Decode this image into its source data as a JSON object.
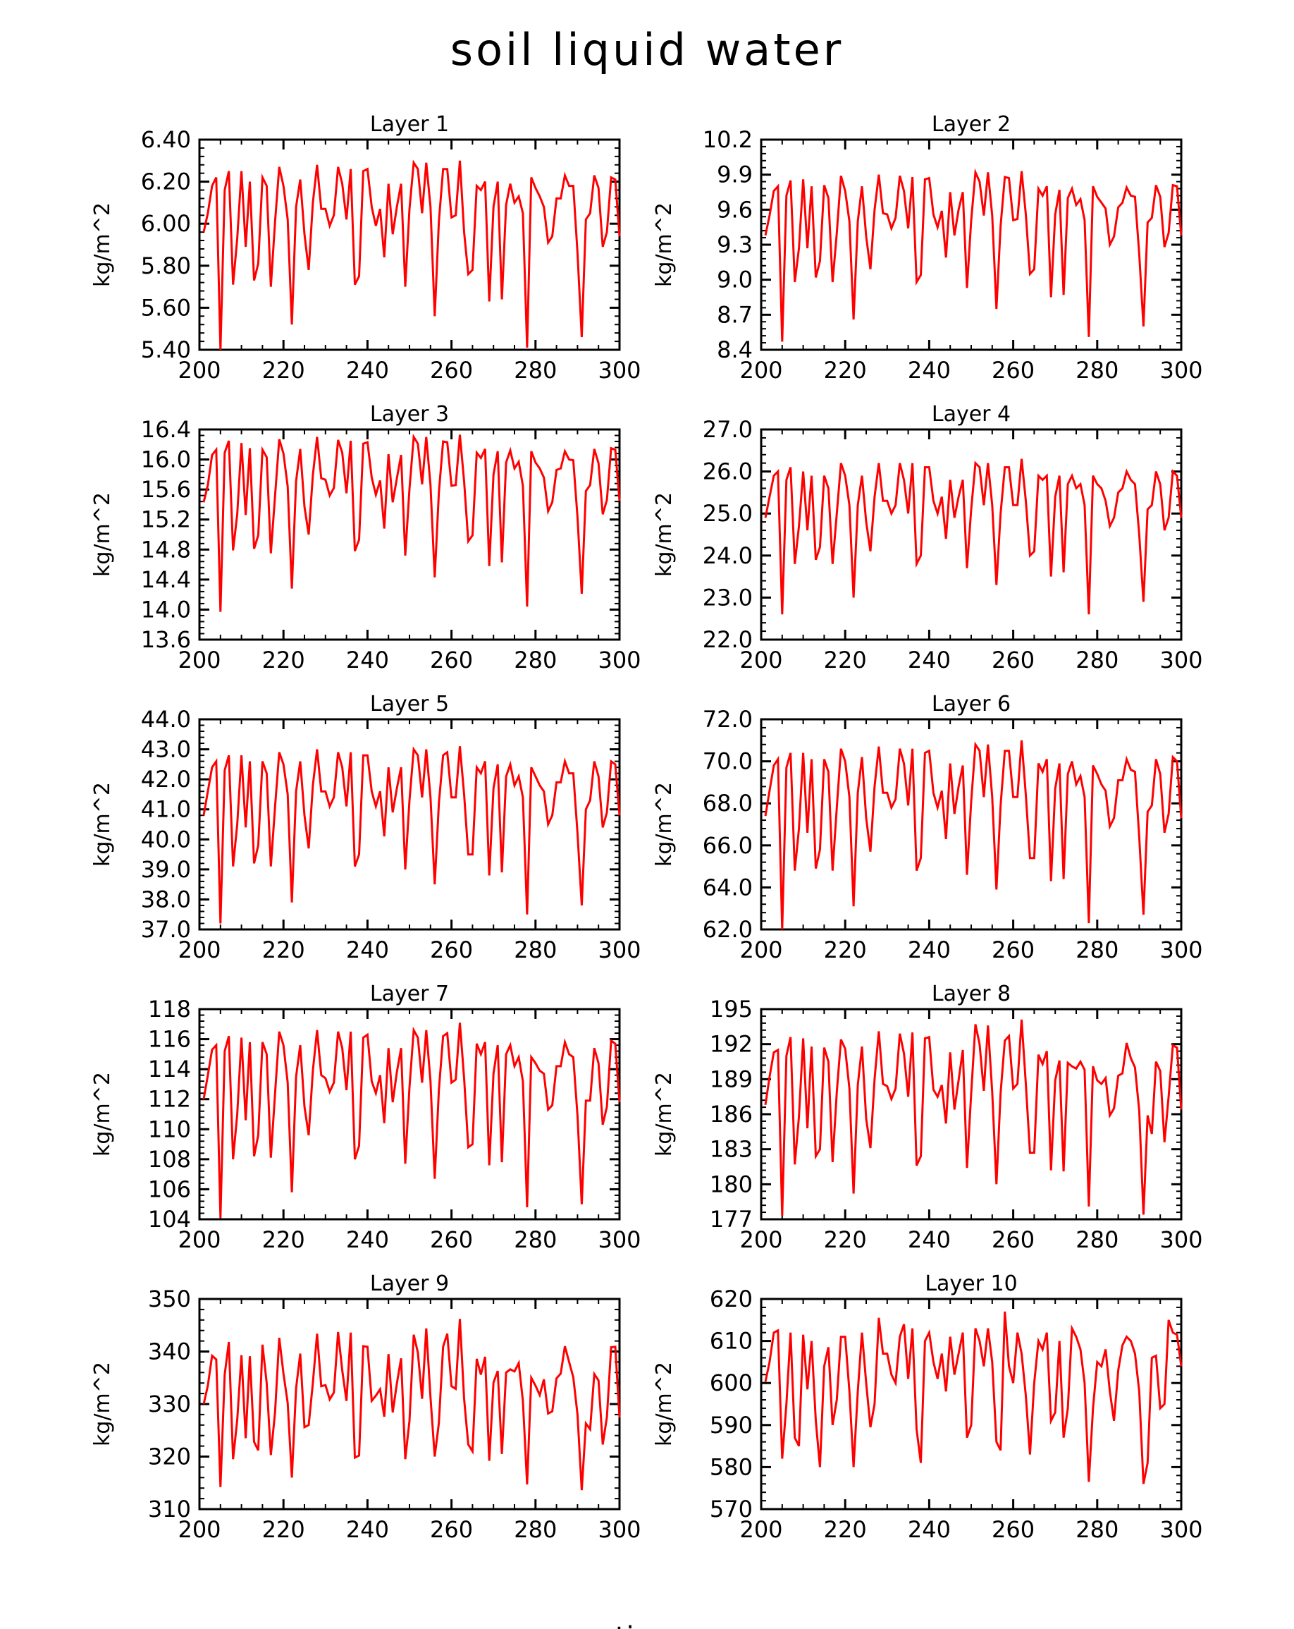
{
  "figure": {
    "title": "soil liquid water",
    "bottom_label": "time"
  },
  "style": {
    "line_color": "#ff0000",
    "axis_color": "#000000"
  },
  "chart_data": [
    {
      "type": "line",
      "title": "Layer 1",
      "ylabel": "kg/m^2",
      "xlim": [
        200,
        300
      ],
      "ylim": [
        5.4,
        6.4
      ],
      "xticks": [
        "200",
        "220",
        "240",
        "260",
        "280",
        "300"
      ],
      "yticks": [
        "5.40",
        "5.60",
        "5.80",
        "6.00",
        "6.20",
        "6.40"
      ],
      "x_start": 201,
      "values": [
        5.96,
        6.05,
        6.18,
        6.22,
        5.4,
        6.16,
        6.25,
        5.71,
        5.93,
        6.25,
        5.89,
        6.2,
        5.73,
        5.81,
        6.22,
        6.18,
        5.7,
        6.01,
        6.27,
        6.18,
        6.02,
        5.52,
        6.08,
        6.21,
        5.95,
        5.78,
        6.1,
        6.28,
        6.07,
        6.07,
        5.99,
        6.04,
        6.27,
        6.19,
        6.02,
        6.26,
        5.71,
        5.75,
        6.25,
        6.26,
        6.08,
        5.99,
        6.07,
        5.84,
        6.19,
        5.95,
        6.08,
        6.19,
        5.7,
        6.07,
        6.29,
        6.26,
        6.05,
        6.29,
        6.08,
        5.56,
        6.01,
        6.26,
        6.26,
        6.03,
        6.04,
        6.3,
        5.96,
        5.76,
        5.78,
        6.18,
        6.16,
        6.2,
        5.63,
        6.08,
        6.2,
        5.64,
        6.09,
        6.19,
        6.1,
        6.13,
        6.05,
        5.41,
        6.22,
        6.17,
        6.13,
        6.08,
        5.91,
        5.94,
        6.12,
        6.12,
        6.23,
        6.18,
        6.18,
        5.86,
        5.46,
        6.02,
        6.05,
        6.23,
        6.17,
        5.89,
        5.96,
        6.22,
        6.21,
        5.94
      ]
    },
    {
      "type": "line",
      "title": "Layer 2",
      "ylabel": "kg/m^2",
      "xlim": [
        200,
        300
      ],
      "ylim": [
        8.4,
        10.2
      ],
      "xticks": [
        "200",
        "220",
        "240",
        "260",
        "280",
        "300"
      ],
      "yticks": [
        "8.4",
        "8.7",
        "9.0",
        "9.3",
        "9.6",
        "9.9",
        "10.2"
      ],
      "x_start": 201,
      "values": [
        9.38,
        9.55,
        9.76,
        9.8,
        8.47,
        9.72,
        9.85,
        8.98,
        9.27,
        9.86,
        9.27,
        9.8,
        9.02,
        9.16,
        9.81,
        9.7,
        8.98,
        9.4,
        9.89,
        9.76,
        9.5,
        8.66,
        9.5,
        9.8,
        9.37,
        9.09,
        9.6,
        9.9,
        9.57,
        9.56,
        9.44,
        9.53,
        9.89,
        9.76,
        9.44,
        9.88,
        8.98,
        9.04,
        9.86,
        9.87,
        9.56,
        9.45,
        9.59,
        9.19,
        9.75,
        9.38,
        9.6,
        9.75,
        8.93,
        9.51,
        9.92,
        9.84,
        9.55,
        9.92,
        9.55,
        8.75,
        9.46,
        9.88,
        9.87,
        9.51,
        9.52,
        9.93,
        9.56,
        9.05,
        9.09,
        9.78,
        9.72,
        9.8,
        8.85,
        9.56,
        9.77,
        8.87,
        9.7,
        9.78,
        9.64,
        9.69,
        9.51,
        8.51,
        9.8,
        9.71,
        9.66,
        9.61,
        9.3,
        9.37,
        9.62,
        9.66,
        9.79,
        9.72,
        9.71,
        9.22,
        8.6,
        9.49,
        9.53,
        9.81,
        9.71,
        9.28,
        9.4,
        9.81,
        9.8,
        9.38
      ]
    },
    {
      "type": "line",
      "title": "Layer 3",
      "ylabel": "kg/m^2",
      "xlim": [
        200,
        300
      ],
      "ylim": [
        13.6,
        16.4
      ],
      "xticks": [
        "200",
        "220",
        "240",
        "260",
        "280",
        "300"
      ],
      "yticks": [
        "13.6",
        "14.0",
        "14.4",
        "14.8",
        "15.2",
        "15.6",
        "16.0",
        "16.4"
      ],
      "x_start": 201,
      "values": [
        15.43,
        15.66,
        16.06,
        16.13,
        13.97,
        16.09,
        16.25,
        14.79,
        15.27,
        16.22,
        15.26,
        16.15,
        14.81,
        14.99,
        16.13,
        16.03,
        14.75,
        15.52,
        16.27,
        16.08,
        15.64,
        14.28,
        15.71,
        16.14,
        15.37,
        15.0,
        15.79,
        16.3,
        15.75,
        15.73,
        15.52,
        15.62,
        16.26,
        16.09,
        15.55,
        16.25,
        14.78,
        14.93,
        16.21,
        16.23,
        15.76,
        15.53,
        15.72,
        15.08,
        16.07,
        15.43,
        15.75,
        16.06,
        14.72,
        15.61,
        16.3,
        16.21,
        15.67,
        16.3,
        15.66,
        14.43,
        15.56,
        16.24,
        16.23,
        15.65,
        15.66,
        16.33,
        15.71,
        14.91,
        14.99,
        16.09,
        16.02,
        16.14,
        14.58,
        15.8,
        16.11,
        14.63,
        15.96,
        16.12,
        15.88,
        15.97,
        15.65,
        14.04,
        16.11,
        15.96,
        15.88,
        15.76,
        15.31,
        15.43,
        15.86,
        15.88,
        16.11,
        16.0,
        15.99,
        15.23,
        14.21,
        15.58,
        15.66,
        16.14,
        15.95,
        15.27,
        15.46,
        16.15,
        16.13,
        15.45
      ]
    },
    {
      "type": "line",
      "title": "Layer 4",
      "ylabel": "kg/m^2",
      "xlim": [
        200,
        300
      ],
      "ylim": [
        22.0,
        27.0
      ],
      "xticks": [
        "200",
        "220",
        "240",
        "260",
        "280",
        "300"
      ],
      "yticks": [
        "22.0",
        "23.0",
        "24.0",
        "25.0",
        "26.0",
        "27.0"
      ],
      "x_start": 201,
      "values": [
        24.9,
        25.4,
        25.9,
        26.0,
        22.6,
        25.8,
        26.1,
        23.8,
        24.7,
        26.0,
        24.6,
        25.9,
        23.9,
        24.2,
        25.9,
        25.6,
        23.8,
        25.0,
        26.2,
        25.9,
        25.2,
        23.0,
        25.2,
        25.9,
        24.8,
        24.1,
        25.4,
        26.2,
        25.3,
        25.3,
        25.0,
        25.2,
        26.2,
        25.8,
        25.0,
        26.2,
        23.8,
        24.0,
        26.1,
        26.1,
        25.3,
        25.0,
        25.4,
        24.4,
        25.8,
        24.9,
        25.4,
        25.8,
        23.7,
        25.1,
        26.2,
        26.1,
        25.2,
        26.2,
        25.2,
        23.3,
        25.0,
        26.1,
        26.1,
        25.2,
        25.2,
        26.3,
        25.3,
        24.0,
        24.1,
        25.9,
        25.8,
        25.9,
        23.5,
        25.4,
        25.9,
        23.6,
        25.7,
        25.9,
        25.6,
        25.7,
        25.2,
        22.6,
        25.9,
        25.7,
        25.6,
        25.3,
        24.7,
        24.9,
        25.5,
        25.6,
        26.0,
        25.8,
        25.7,
        24.5,
        22.9,
        25.1,
        25.2,
        26.0,
        25.7,
        24.6,
        24.9,
        26.0,
        25.9,
        24.9
      ]
    },
    {
      "type": "line",
      "title": "Layer 5",
      "ylabel": "kg/m^2",
      "xlim": [
        200,
        300
      ],
      "ylim": [
        37.0,
        44.0
      ],
      "xticks": [
        "200",
        "220",
        "240",
        "260",
        "280",
        "300"
      ],
      "yticks": [
        "37.0",
        "38.0",
        "39.0",
        "40.0",
        "41.0",
        "42.0",
        "43.0",
        "44.0"
      ],
      "x_start": 201,
      "values": [
        40.8,
        41.6,
        42.4,
        42.6,
        37.2,
        42.3,
        42.8,
        39.1,
        40.5,
        42.8,
        40.4,
        42.6,
        39.2,
        39.8,
        42.6,
        42.2,
        39.1,
        41.1,
        42.9,
        42.5,
        41.5,
        37.9,
        41.6,
        42.6,
        40.8,
        39.7,
        41.8,
        43.0,
        41.6,
        41.6,
        41.1,
        41.4,
        42.9,
        42.4,
        41.1,
        42.9,
        39.1,
        39.5,
        42.8,
        42.8,
        41.6,
        41.1,
        41.6,
        40.1,
        42.4,
        40.9,
        41.7,
        42.4,
        39.0,
        41.3,
        43.0,
        42.8,
        41.4,
        43.0,
        41.4,
        38.5,
        41.2,
        42.8,
        42.9,
        41.4,
        41.4,
        43.1,
        41.5,
        39.5,
        39.5,
        42.4,
        42.2,
        42.6,
        38.8,
        41.7,
        42.5,
        38.9,
        42.1,
        42.5,
        41.8,
        42.1,
        41.4,
        37.5,
        42.4,
        42.1,
        41.8,
        41.6,
        40.5,
        40.8,
        41.9,
        41.9,
        42.6,
        42.2,
        42.2,
        40.2,
        37.8,
        41.0,
        41.3,
        42.6,
        42.1,
        40.4,
        40.9,
        42.6,
        42.5,
        40.8
      ]
    },
    {
      "type": "line",
      "title": "Layer 6",
      "ylabel": "kg/m^2",
      "xlim": [
        200,
        300
      ],
      "ylim": [
        62.0,
        72.0
      ],
      "xticks": [
        "200",
        "220",
        "240",
        "260",
        "280",
        "300"
      ],
      "yticks": [
        "62.0",
        "64.0",
        "66.0",
        "68.0",
        "70.0",
        "72.0"
      ],
      "x_start": 201,
      "values": [
        67.4,
        68.6,
        69.8,
        70.1,
        62.0,
        69.7,
        70.4,
        64.8,
        66.8,
        70.4,
        66.6,
        70.1,
        64.9,
        65.8,
        70.1,
        69.5,
        64.8,
        67.8,
        70.6,
        70.0,
        68.3,
        63.1,
        68.5,
        70.2,
        67.3,
        65.7,
        68.8,
        70.7,
        68.5,
        68.5,
        67.8,
        68.2,
        70.6,
        69.9,
        67.9,
        70.6,
        64.8,
        65.4,
        70.4,
        70.5,
        68.5,
        67.8,
        68.6,
        66.3,
        69.9,
        67.5,
        68.8,
        69.8,
        64.6,
        68.1,
        70.8,
        70.5,
        68.3,
        70.8,
        68.3,
        63.9,
        67.9,
        70.5,
        70.5,
        68.3,
        68.3,
        71.0,
        68.4,
        65.4,
        65.4,
        69.9,
        69.5,
        70.1,
        64.3,
        68.7,
        69.9,
        64.4,
        69.4,
        70.0,
        68.9,
        69.3,
        68.3,
        62.3,
        69.8,
        69.4,
        68.9,
        68.6,
        66.9,
        67.3,
        69.1,
        69.1,
        70.1,
        69.6,
        69.5,
        66.4,
        62.7,
        67.6,
        67.9,
        70.1,
        69.4,
        66.6,
        67.5,
        70.2,
        70.0,
        67.3
      ]
    },
    {
      "type": "line",
      "title": "Layer 7",
      "ylabel": "kg/m^2",
      "xlim": [
        200,
        300
      ],
      "ylim": [
        104,
        118
      ],
      "xticks": [
        "200",
        "220",
        "240",
        "260",
        "280",
        "300"
      ],
      "yticks": [
        "104",
        "106",
        "108",
        "110",
        "112",
        "114",
        "116",
        "118"
      ],
      "x_start": 201,
      "values": [
        112.0,
        113.6,
        115.3,
        115.6,
        104.1,
        115.2,
        116.2,
        108.0,
        111.0,
        116.1,
        110.6,
        115.8,
        108.2,
        109.6,
        115.8,
        115.0,
        108.1,
        112.4,
        116.5,
        115.6,
        113.1,
        105.8,
        113.5,
        115.6,
        111.5,
        109.6,
        113.9,
        116.6,
        113.6,
        113.4,
        112.5,
        113.1,
        116.5,
        115.4,
        112.6,
        116.5,
        108.0,
        108.9,
        116.1,
        116.3,
        113.2,
        112.4,
        113.6,
        110.4,
        115.4,
        111.8,
        113.8,
        115.4,
        107.7,
        112.8,
        116.6,
        116.1,
        113.1,
        116.6,
        113.2,
        106.7,
        112.6,
        116.2,
        116.4,
        113.1,
        113.3,
        117.1,
        113.4,
        108.8,
        109.0,
        115.7,
        115.0,
        115.8,
        107.6,
        113.7,
        115.6,
        107.8,
        115.0,
        115.6,
        114.2,
        114.8,
        113.2,
        104.8,
        114.8,
        114.4,
        113.9,
        113.7,
        111.3,
        111.6,
        114.2,
        114.2,
        115.8,
        115.0,
        114.8,
        110.9,
        105.0,
        111.9,
        111.9,
        115.4,
        114.4,
        110.3,
        111.5,
        115.9,
        115.7,
        111.8
      ]
    },
    {
      "type": "line",
      "title": "Layer 8",
      "ylabel": "kg/m^2",
      "xlim": [
        200,
        300
      ],
      "ylim": [
        177,
        195
      ],
      "xticks": [
        "200",
        "220",
        "240",
        "260",
        "280",
        "300"
      ],
      "yticks": [
        "177",
        "180",
        "183",
        "186",
        "189",
        "192",
        "195"
      ],
      "x_start": 201,
      "values": [
        186.8,
        189.2,
        191.3,
        191.5,
        177.3,
        191.0,
        192.6,
        181.7,
        185.8,
        192.5,
        184.8,
        191.8,
        182.4,
        183.0,
        191.7,
        190.5,
        181.9,
        187.9,
        192.4,
        191.6,
        188.2,
        179.2,
        188.5,
        191.8,
        185.6,
        183.1,
        189.0,
        193.1,
        188.6,
        188.4,
        187.3,
        188.2,
        192.9,
        191.2,
        187.5,
        193.0,
        181.6,
        182.4,
        192.5,
        192.6,
        188.1,
        187.5,
        188.5,
        185.2,
        191.3,
        186.4,
        188.9,
        191.5,
        181.4,
        187.8,
        193.7,
        192.0,
        188.0,
        193.6,
        187.9,
        180.0,
        187.8,
        192.3,
        192.7,
        188.2,
        188.6,
        194.1,
        188.6,
        182.7,
        182.7,
        191.1,
        190.3,
        191.4,
        181.2,
        188.9,
        190.6,
        181.1,
        190.4,
        190.1,
        189.9,
        190.5,
        189.8,
        178.1,
        190.1,
        188.9,
        188.6,
        189.1,
        185.9,
        186.5,
        189.3,
        189.5,
        192.1,
        190.8,
        190.0,
        186.3,
        177.4,
        185.9,
        184.3,
        190.5,
        189.7,
        183.6,
        187.5,
        191.9,
        191.7,
        186.4
      ]
    },
    {
      "type": "line",
      "title": "Layer 9",
      "ylabel": "kg/m^2",
      "xlim": [
        200,
        300
      ],
      "ylim": [
        310,
        350
      ],
      "xticks": [
        "200",
        "220",
        "240",
        "260",
        "280",
        "300"
      ],
      "yticks": [
        "310",
        "320",
        "330",
        "340",
        "350"
      ],
      "x_start": 201,
      "values": [
        330.0,
        333.5,
        339.2,
        338.5,
        314.2,
        335.6,
        341.8,
        319.5,
        327.0,
        339.3,
        323.5,
        339.1,
        322.8,
        321.2,
        341.3,
        334.0,
        320.3,
        328.5,
        342.6,
        335.8,
        330.2,
        316.0,
        333.0,
        339.6,
        325.6,
        326.0,
        334.0,
        343.4,
        333.4,
        333.6,
        330.9,
        332.2,
        343.7,
        336.4,
        330.6,
        343.6,
        319.8,
        320.2,
        341.0,
        340.9,
        330.6,
        331.6,
        332.8,
        327.6,
        339.5,
        328.4,
        333.9,
        338.7,
        319.5,
        326.8,
        343.2,
        339.8,
        331.0,
        344.4,
        331.3,
        320.0,
        326.4,
        340.9,
        343.4,
        333.4,
        332.9,
        346.2,
        331.0,
        322.3,
        321.0,
        338.6,
        335.6,
        339.0,
        319.2,
        334.1,
        336.3,
        320.5,
        336.0,
        336.6,
        336.2,
        337.8,
        330.6,
        314.7,
        335.0,
        333.5,
        331.7,
        334.7,
        328.2,
        328.6,
        334.9,
        335.8,
        341.0,
        338.0,
        335.1,
        328.0,
        313.6,
        326.3,
        325.2,
        335.7,
        334.5,
        322.3,
        327.5,
        340.8,
        340.9,
        327.4
      ]
    },
    {
      "type": "line",
      "title": "Layer 10",
      "ylabel": "kg/m^2",
      "xlim": [
        200,
        300
      ],
      "ylim": [
        570,
        620
      ],
      "xticks": [
        "200",
        "220",
        "240",
        "260",
        "280",
        "300"
      ],
      "yticks": [
        "570",
        "580",
        "590",
        "600",
        "610",
        "620"
      ],
      "x_start": 201,
      "values": [
        600.3,
        605.0,
        612.0,
        612.5,
        582.0,
        595.0,
        612.0,
        587.0,
        585.0,
        611.5,
        598.5,
        610.0,
        591.0,
        580.0,
        604.0,
        608.5,
        590.0,
        596.0,
        611.0,
        611.0,
        598.0,
        580.0,
        598.0,
        612.0,
        600.0,
        589.5,
        595.0,
        615.5,
        607.0,
        607.0,
        602.0,
        600.0,
        611.0,
        614.0,
        601.0,
        613.0,
        589.0,
        581.0,
        610.0,
        612.0,
        605.0,
        601.0,
        607.0,
        598.0,
        611.0,
        602.0,
        607.0,
        612.0,
        587.0,
        590.0,
        613.0,
        610.0,
        604.0,
        613.0,
        605.0,
        586.0,
        584.0,
        617.0,
        604.0,
        600.0,
        612.0,
        607.0,
        597.0,
        583.0,
        600.0,
        610.0,
        608.0,
        612.0,
        591.0,
        593.0,
        610.0,
        587.0,
        594.0,
        613.0,
        611.0,
        608.0,
        600.0,
        576.5,
        594.0,
        605.0,
        604.0,
        608.0,
        598.0,
        591.0,
        603.0,
        609.0,
        611.0,
        610.0,
        607.0,
        598.0,
        576.0,
        581.0,
        606.0,
        606.5,
        594.0,
        595.0,
        615.0,
        612.0,
        611.5,
        604.0
      ]
    }
  ]
}
